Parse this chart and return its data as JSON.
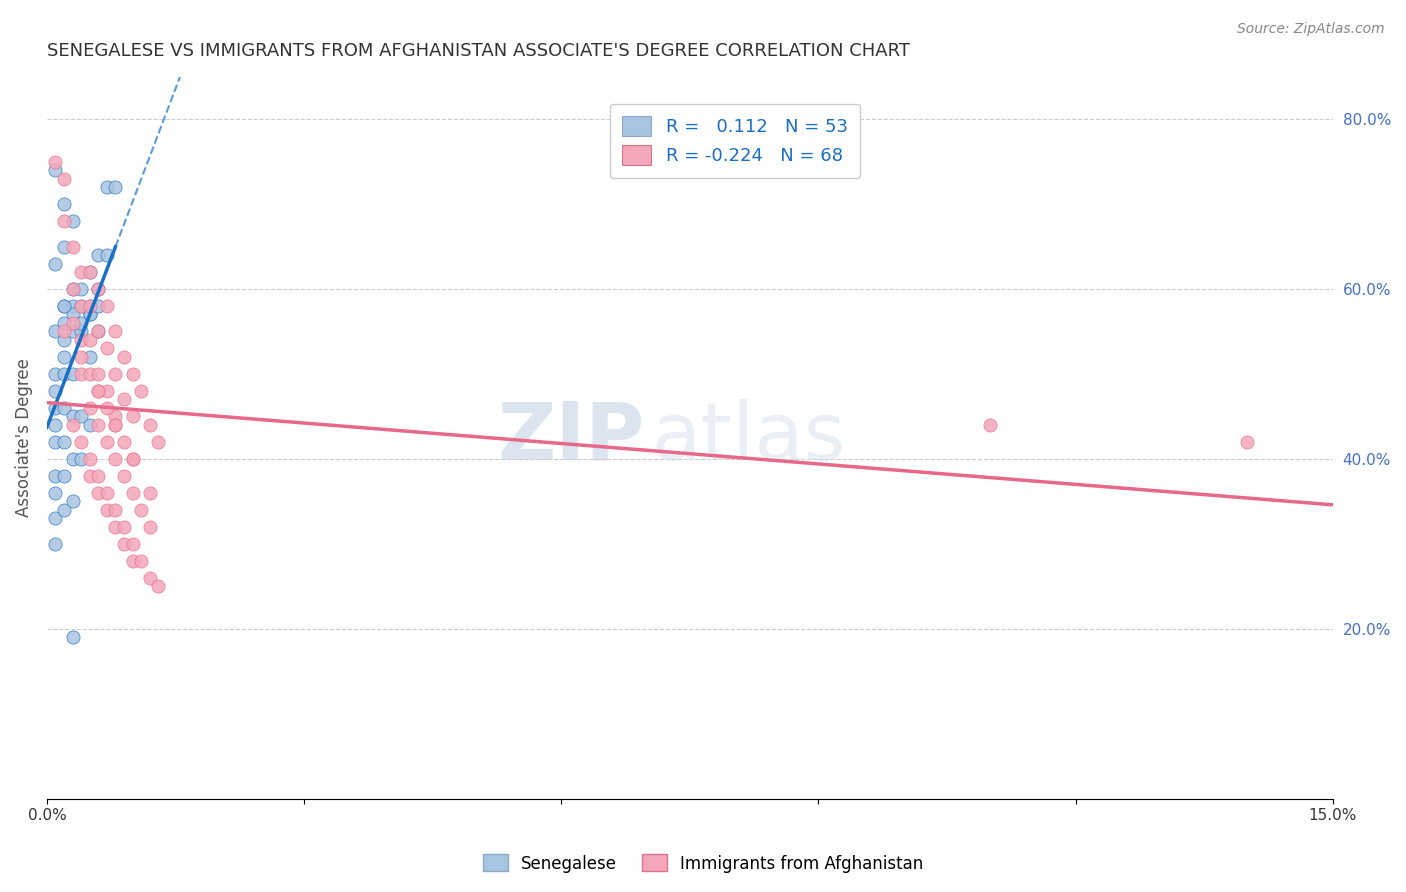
{
  "title": "SENEGALESE VS IMMIGRANTS FROM AFGHANISTAN ASSOCIATE'S DEGREE CORRELATION CHART",
  "source": "Source: ZipAtlas.com",
  "ylabel": "Associate's Degree",
  "x_min": 0.0,
  "x_max": 0.15,
  "y_min": 0.0,
  "y_max": 0.85,
  "series1_color": "#a8c4e0",
  "series2_color": "#f4a7b9",
  "trendline1_color": "#1a6fc4",
  "trendline2_color": "#e8688a",
  "watermark_zip": "ZIP",
  "watermark_atlas": "atlas",
  "senegalese_x": [
    0.001,
    0.001,
    0.001,
    0.001,
    0.001,
    0.001,
    0.001,
    0.001,
    0.001,
    0.001,
    0.002,
    0.002,
    0.002,
    0.002,
    0.002,
    0.002,
    0.002,
    0.002,
    0.002,
    0.003,
    0.003,
    0.003,
    0.003,
    0.003,
    0.003,
    0.003,
    0.004,
    0.004,
    0.004,
    0.004,
    0.004,
    0.005,
    0.005,
    0.005,
    0.005,
    0.006,
    0.006,
    0.006,
    0.007,
    0.007,
    0.008,
    0.001,
    0.002,
    0.003,
    0.002,
    0.001,
    0.003,
    0.004,
    0.005,
    0.005,
    0.003,
    0.006,
    0.002
  ],
  "senegalese_y": [
    0.55,
    0.5,
    0.48,
    0.46,
    0.44,
    0.42,
    0.38,
    0.36,
    0.33,
    0.3,
    0.58,
    0.56,
    0.54,
    0.52,
    0.5,
    0.46,
    0.42,
    0.38,
    0.34,
    0.6,
    0.58,
    0.55,
    0.5,
    0.45,
    0.4,
    0.35,
    0.6,
    0.58,
    0.55,
    0.45,
    0.4,
    0.62,
    0.58,
    0.52,
    0.44,
    0.64,
    0.6,
    0.55,
    0.72,
    0.64,
    0.72,
    0.74,
    0.7,
    0.68,
    0.65,
    0.63,
    0.57,
    0.56,
    0.57,
    0.57,
    0.19,
    0.58,
    0.58
  ],
  "afghanistan_x": [
    0.001,
    0.002,
    0.002,
    0.003,
    0.003,
    0.003,
    0.004,
    0.004,
    0.004,
    0.004,
    0.005,
    0.005,
    0.005,
    0.005,
    0.006,
    0.006,
    0.006,
    0.007,
    0.007,
    0.007,
    0.008,
    0.008,
    0.008,
    0.009,
    0.009,
    0.01,
    0.01,
    0.011,
    0.012,
    0.013,
    0.003,
    0.004,
    0.005,
    0.005,
    0.006,
    0.006,
    0.007,
    0.007,
    0.008,
    0.008,
    0.009,
    0.009,
    0.01,
    0.01,
    0.011,
    0.012,
    0.013,
    0.005,
    0.006,
    0.007,
    0.008,
    0.009,
    0.01,
    0.011,
    0.012,
    0.006,
    0.007,
    0.008,
    0.009,
    0.01,
    0.002,
    0.004,
    0.006,
    0.008,
    0.01,
    0.012,
    0.14,
    0.11
  ],
  "afghanistan_y": [
    0.75,
    0.73,
    0.68,
    0.65,
    0.6,
    0.56,
    0.62,
    0.58,
    0.54,
    0.5,
    0.62,
    0.58,
    0.54,
    0.5,
    0.6,
    0.55,
    0.5,
    0.58,
    0.53,
    0.48,
    0.55,
    0.5,
    0.45,
    0.52,
    0.47,
    0.5,
    0.45,
    0.48,
    0.44,
    0.42,
    0.44,
    0.42,
    0.4,
    0.38,
    0.38,
    0.36,
    0.36,
    0.34,
    0.34,
    0.32,
    0.32,
    0.3,
    0.3,
    0.28,
    0.28,
    0.26,
    0.25,
    0.46,
    0.44,
    0.42,
    0.4,
    0.38,
    0.36,
    0.34,
    0.32,
    0.48,
    0.46,
    0.44,
    0.42,
    0.4,
    0.55,
    0.52,
    0.48,
    0.44,
    0.4,
    0.36,
    0.42,
    0.44
  ]
}
